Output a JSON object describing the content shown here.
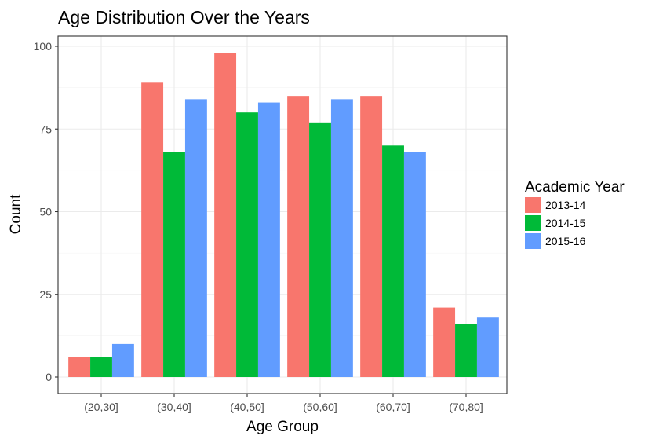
{
  "chart_data": {
    "type": "bar",
    "title": "Age Distribution Over the Years",
    "xlabel": "Age Group",
    "ylabel": "Count",
    "ylim": [
      0,
      100
    ],
    "yticks": [
      0,
      25,
      50,
      75,
      100
    ],
    "categories": [
      "(20,30]",
      "(30,40]",
      "(40,50]",
      "(50,60]",
      "(60,70]",
      "(70,80]"
    ],
    "legend": {
      "title": "Academic Year",
      "position": "right"
    },
    "grid": true,
    "series": [
      {
        "name": "2013-14",
        "color": "#F8766D",
        "values": [
          6,
          89,
          98,
          85,
          85,
          21
        ]
      },
      {
        "name": "2014-15",
        "color": "#00BA38",
        "values": [
          6,
          68,
          80,
          77,
          70,
          16
        ]
      },
      {
        "name": "2015-16",
        "color": "#619CFF",
        "values": [
          10,
          84,
          83,
          84,
          68,
          18
        ]
      }
    ]
  }
}
